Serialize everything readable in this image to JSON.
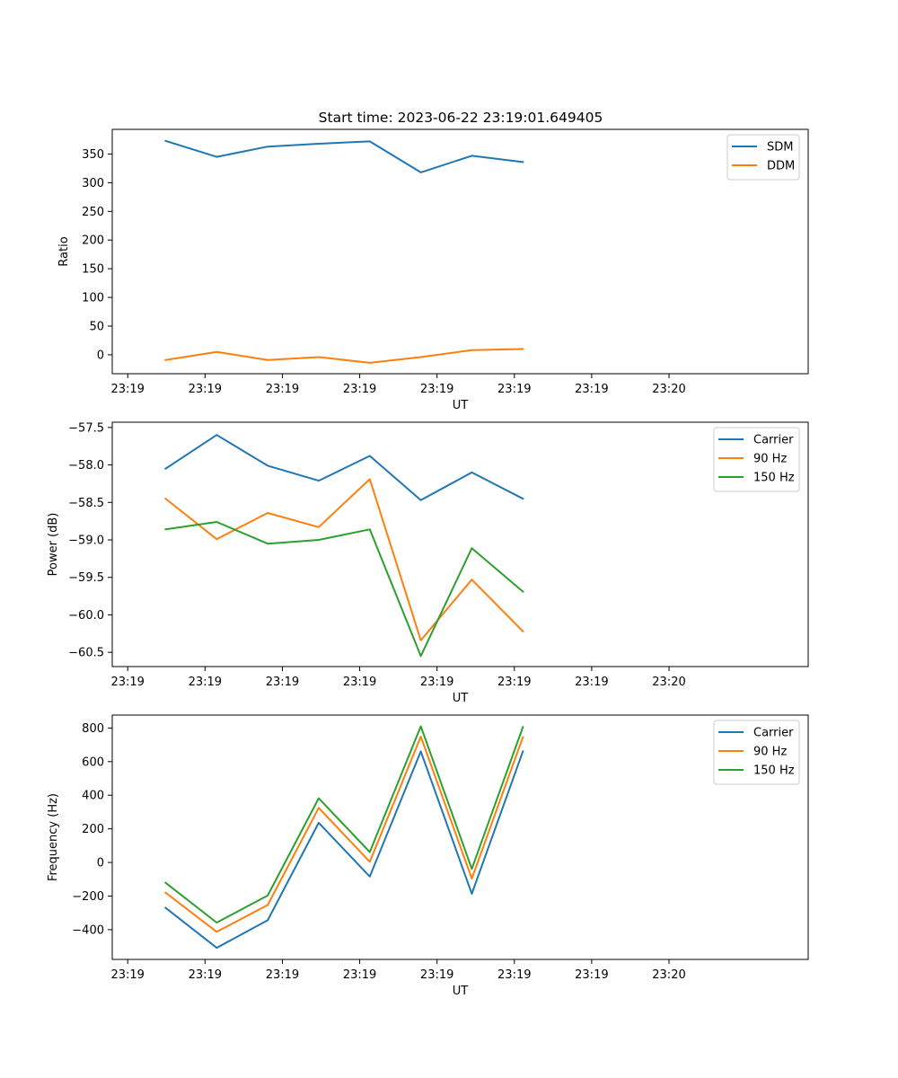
{
  "figure_title": "Start time: 2023-06-22 23:19:01.649405",
  "chart_data": [
    {
      "type": "line",
      "title": "Start time: 2023-06-22 23:19:01.649405",
      "xlabel": "UT",
      "ylabel": "Ratio",
      "xlim": [
        0,
        9
      ],
      "x_ticks": [
        0.2,
        1.2,
        2.2,
        3.2,
        4.2,
        5.2,
        6.2,
        7.2
      ],
      "x_tick_labels": [
        "23:19",
        "23:19",
        "23:19",
        "23:19",
        "23:19",
        "23:19",
        "23:19",
        "23:20"
      ],
      "ylim": [
        -33,
        393
      ],
      "y_ticks": [
        0,
        50,
        100,
        150,
        200,
        250,
        300,
        350
      ],
      "y_tick_labels": [
        "0",
        "50",
        "100",
        "150",
        "200",
        "250",
        "300",
        "350"
      ],
      "x": [
        0.69,
        1.35,
        2.01,
        2.67,
        3.33,
        3.99,
        4.65,
        5.31
      ],
      "series": [
        {
          "name": "SDM",
          "color": "#1f77b4",
          "values": [
            373,
            345,
            363,
            368,
            372,
            318,
            347,
            336
          ]
        },
        {
          "name": "DDM",
          "color": "#ff7f0e",
          "values": [
            -9,
            5,
            -9,
            -4,
            -14,
            -4,
            8,
            10
          ]
        }
      ],
      "legend": "top-right",
      "grid": false
    },
    {
      "type": "line",
      "xlabel": "UT",
      "ylabel": "Power (dB)",
      "xlim": [
        0,
        9
      ],
      "x_ticks": [
        0.2,
        1.2,
        2.2,
        3.2,
        4.2,
        5.2,
        6.2,
        7.2
      ],
      "x_tick_labels": [
        "23:19",
        "23:19",
        "23:19",
        "23:19",
        "23:19",
        "23:19",
        "23:19",
        "23:20"
      ],
      "ylim": [
        -60.69,
        -57.43
      ],
      "y_ticks": [
        -57.5,
        -58.0,
        -58.5,
        -59.0,
        -59.5,
        -60.0,
        -60.5
      ],
      "y_tick_labels": [
        "−57.5",
        "−58.0",
        "−58.5",
        "−59.0",
        "−59.5",
        "−60.0",
        "−60.5"
      ],
      "x": [
        0.69,
        1.35,
        2.01,
        2.67,
        3.33,
        3.99,
        4.65,
        5.31
      ],
      "series": [
        {
          "name": "Carrier",
          "color": "#1f77b4",
          "values": [
            -58.05,
            -57.6,
            -58.01,
            -58.21,
            -57.88,
            -58.47,
            -58.1,
            -58.45
          ]
        },
        {
          "name": "90 Hz",
          "color": "#ff7f0e",
          "values": [
            -58.45,
            -58.99,
            -58.64,
            -58.83,
            -58.19,
            -60.34,
            -59.53,
            -60.22
          ]
        },
        {
          "name": "150 Hz",
          "color": "#2ca02c",
          "values": [
            -58.86,
            -58.76,
            -59.05,
            -59.0,
            -58.86,
            -60.55,
            -59.11,
            -59.69
          ]
        }
      ],
      "legend": "top-right",
      "grid": false
    },
    {
      "type": "line",
      "xlabel": "UT",
      "ylabel": "Frequency (Hz)",
      "xlim": [
        0,
        9
      ],
      "x_ticks": [
        0.2,
        1.2,
        2.2,
        3.2,
        4.2,
        5.2,
        6.2,
        7.2
      ],
      "x_tick_labels": [
        "23:19",
        "23:19",
        "23:19",
        "23:19",
        "23:19",
        "23:19",
        "23:19",
        "23:20"
      ],
      "ylim": [
        -577,
        877
      ],
      "y_ticks": [
        -400,
        -200,
        0,
        200,
        400,
        600,
        800
      ],
      "y_tick_labels": [
        "−400",
        "−200",
        "0",
        "200",
        "400",
        "600",
        "800"
      ],
      "x": [
        0.69,
        1.35,
        2.01,
        2.67,
        3.33,
        3.99,
        4.65,
        5.31
      ],
      "series": [
        {
          "name": "Carrier",
          "color": "#1f77b4",
          "values": [
            -270,
            -508,
            -344,
            236,
            -84,
            661,
            -186,
            661
          ]
        },
        {
          "name": "90 Hz",
          "color": "#ff7f0e",
          "values": [
            -180,
            -413,
            -253,
            325,
            4,
            749,
            -96,
            746
          ]
        },
        {
          "name": "150 Hz",
          "color": "#2ca02c",
          "values": [
            -121,
            -358,
            -197,
            382,
            62,
            810,
            -38,
            806
          ]
        }
      ],
      "legend": "top-right",
      "grid": false
    }
  ]
}
